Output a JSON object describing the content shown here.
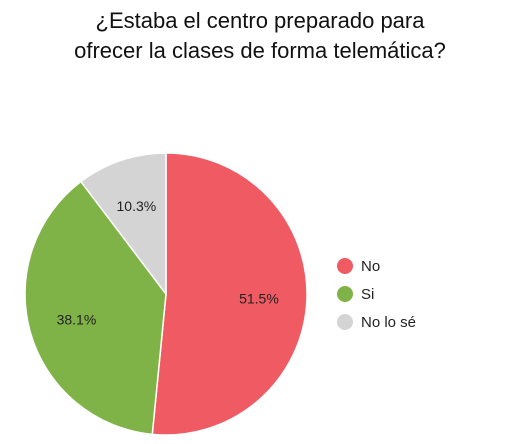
{
  "chart_data": {
    "type": "pie",
    "title_lines": [
      "¿Estaba el centro preparado para",
      "ofrecer la clases de forma telemática?"
    ],
    "categories": [
      "No",
      "Si",
      "No lo sé"
    ],
    "values": [
      51.5,
      38.1,
      10.3
    ],
    "labels": [
      "51.5%",
      "38.1%",
      "10.3%"
    ],
    "colors": [
      "#f05a63",
      "#7fb347",
      "#d4d4d4"
    ],
    "start_angle_deg": 0,
    "direction": "clockwise",
    "legend_position": "right"
  }
}
